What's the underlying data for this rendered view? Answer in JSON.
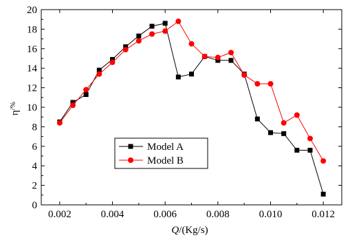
{
  "chart_data": {
    "type": "line",
    "xlabel_symbol": "Q",
    "xlabel_unit": "/(Kg/s)",
    "ylabel_symbol": "η",
    "ylabel_unit": "/%",
    "xlim": [
      0.0013,
      0.0127
    ],
    "ylim": [
      0,
      20
    ],
    "xticks": [
      "0.002",
      "0.004",
      "0.006",
      "0.008",
      "0.010",
      "0.012"
    ],
    "yticks": [
      "0",
      "2",
      "4",
      "6",
      "8",
      "10",
      "12",
      "14",
      "16",
      "18",
      "20"
    ],
    "grid": false,
    "legend": "center-left",
    "series": [
      {
        "name": "Model A",
        "marker": "square",
        "color": "#000000",
        "x": [
          0.002,
          0.0025,
          0.003,
          0.0035,
          0.004,
          0.0045,
          0.005,
          0.0055,
          0.006,
          0.0065,
          0.007,
          0.0075,
          0.008,
          0.0085,
          0.009,
          0.0095,
          0.01,
          0.0105,
          0.011,
          0.0115,
          0.012
        ],
        "y": [
          8.5,
          10.5,
          11.3,
          13.8,
          14.9,
          16.2,
          17.3,
          18.3,
          18.6,
          13.1,
          13.4,
          15.2,
          14.8,
          14.8,
          13.4,
          8.8,
          7.4,
          7.3,
          5.6,
          5.6,
          1.1
        ]
      },
      {
        "name": "Model B",
        "marker": "circle",
        "color": "#ff0000",
        "x": [
          0.002,
          0.0025,
          0.003,
          0.0035,
          0.004,
          0.0045,
          0.005,
          0.0055,
          0.006,
          0.0065,
          0.007,
          0.0075,
          0.008,
          0.0085,
          0.009,
          0.0095,
          0.01,
          0.0105,
          0.011,
          0.0115,
          0.012
        ],
        "y": [
          8.4,
          10.2,
          11.8,
          13.4,
          14.6,
          15.9,
          16.8,
          17.5,
          17.8,
          18.8,
          16.5,
          15.2,
          15.1,
          15.6,
          13.3,
          12.4,
          12.4,
          8.4,
          9.2,
          6.8,
          4.5
        ]
      }
    ]
  }
}
